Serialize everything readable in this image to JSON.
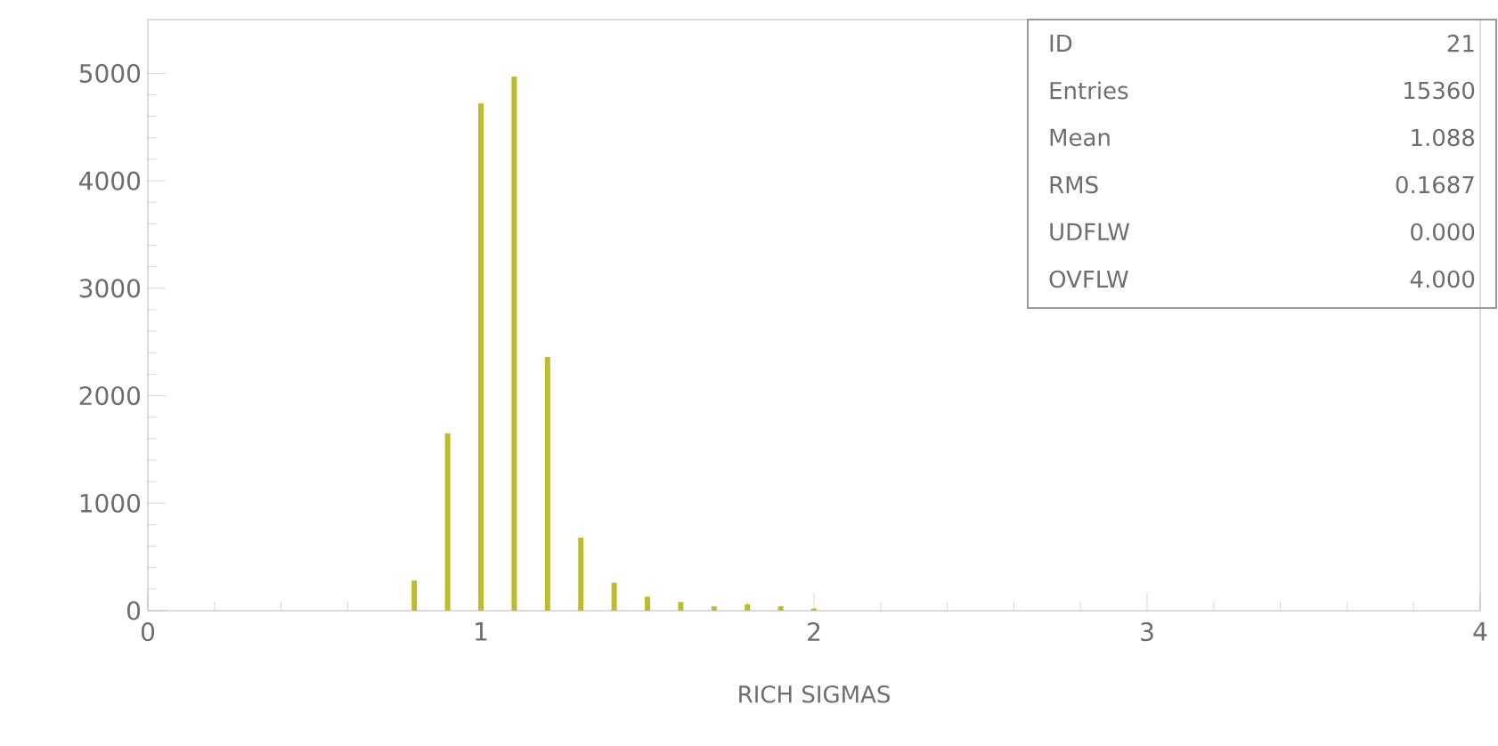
{
  "chart_data": {
    "type": "bar",
    "x": [
      0.8,
      0.9,
      1.0,
      1.1,
      1.2,
      1.3,
      1.4,
      1.5,
      1.6,
      1.7,
      1.8,
      1.9,
      2.0
    ],
    "values": [
      280,
      1650,
      4720,
      4970,
      2360,
      680,
      260,
      130,
      80,
      40,
      60,
      40,
      20
    ],
    "color": "#bcbc2c",
    "xlim": [
      0,
      4
    ],
    "ylim": [
      0,
      5500
    ],
    "xticks": [
      0,
      1,
      2,
      3,
      4
    ],
    "yticks": [
      0,
      1000,
      2000,
      3000,
      4000,
      5000
    ],
    "xlabel": "RICH SIGMAS",
    "annotations": [
      "ID",
      "21",
      "Entries",
      "15360",
      "Mean",
      "1.088",
      "RMS",
      "0.1687",
      "UDFLW",
      "0.000",
      "OVFLW",
      "4.000"
    ]
  }
}
